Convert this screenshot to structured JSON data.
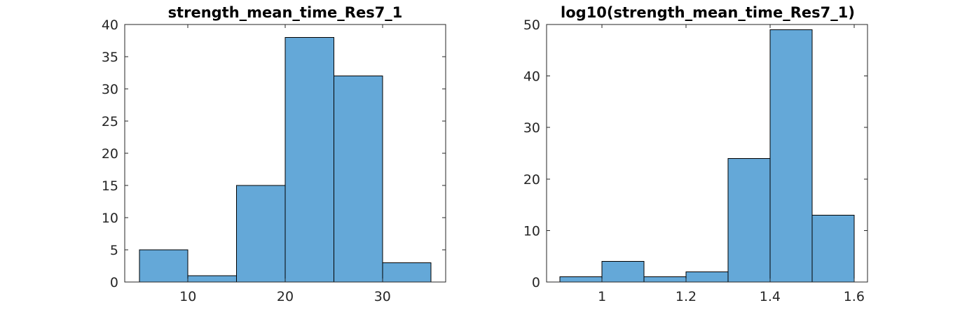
{
  "chart_data": [
    {
      "type": "bar",
      "title": "strength_mean_time_Res7_1",
      "xlabel": "",
      "ylabel": "",
      "bin_edges": [
        5,
        10,
        15,
        20,
        25,
        30,
        35
      ],
      "values": [
        5,
        1,
        15,
        38,
        32,
        3
      ],
      "xlim": [
        3.5,
        36.5
      ],
      "ylim": [
        0,
        40
      ],
      "xticks": [
        10,
        20,
        30
      ],
      "xtick_labels": [
        "10",
        "20",
        "30"
      ],
      "yticks": [
        0,
        5,
        10,
        15,
        20,
        25,
        30,
        35,
        40
      ],
      "ytick_labels": [
        "0",
        "5",
        "10",
        "15",
        "20",
        "25",
        "30",
        "35",
        "40"
      ],
      "grid": false,
      "legend": "none",
      "bar_color": "#64a8d8"
    },
    {
      "type": "bar",
      "title": "log10(strength_mean_time_Res7_1)",
      "xlabel": "",
      "ylabel": "",
      "bin_edges": [
        0.9,
        1.0,
        1.1,
        1.2,
        1.3,
        1.4,
        1.5,
        1.6
      ],
      "values": [
        1,
        4,
        1,
        2,
        24,
        49,
        13
      ],
      "xlim": [
        0.868,
        1.632
      ],
      "ylim": [
        0,
        50
      ],
      "xticks": [
        1,
        1.2,
        1.4,
        1.6
      ],
      "xtick_labels": [
        "1",
        "1.2",
        "1.4",
        "1.6"
      ],
      "yticks": [
        0,
        10,
        20,
        30,
        40,
        50
      ],
      "ytick_labels": [
        "0",
        "10",
        "20",
        "30",
        "40",
        "50"
      ],
      "grid": false,
      "legend": "none",
      "bar_color": "#64a8d8"
    }
  ]
}
